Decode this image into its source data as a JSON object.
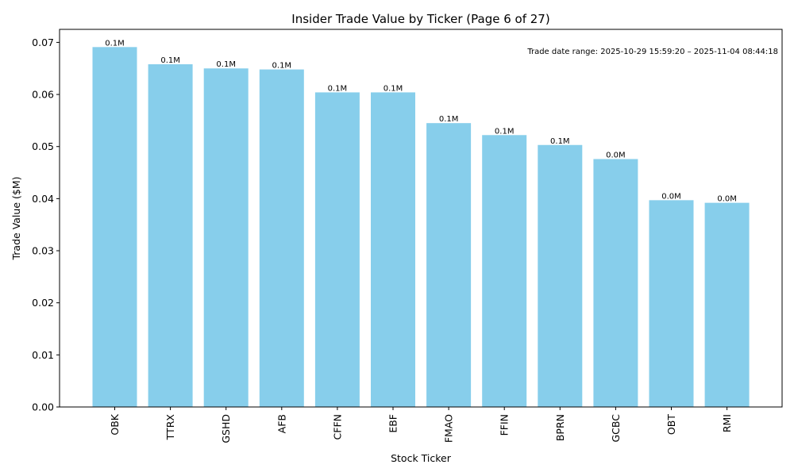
{
  "chart_data": {
    "type": "bar",
    "title": "Insider Trade Value by Ticker (Page 6 of 27)",
    "xlabel": "Stock Ticker",
    "ylabel": "Trade Value ($M)",
    "ylim": [
      0,
      0.0725
    ],
    "yticks": [
      "0.00",
      "0.01",
      "0.02",
      "0.03",
      "0.04",
      "0.05",
      "0.06",
      "0.07"
    ],
    "categories": [
      "OBK",
      "TTRX",
      "GSHD",
      "AFB",
      "CFFN",
      "EBF",
      "FMAO",
      "FFIN",
      "BPRN",
      "GCBC",
      "OBT",
      "RMI"
    ],
    "values": [
      0.0691,
      0.0658,
      0.065,
      0.0648,
      0.0604,
      0.0604,
      0.0545,
      0.0522,
      0.0503,
      0.0476,
      0.0397,
      0.0392
    ],
    "data_labels": [
      "0.1M",
      "0.1M",
      "0.1M",
      "0.1M",
      "0.1M",
      "0.1M",
      "0.1M",
      "0.1M",
      "0.1M",
      "0.0M",
      "0.0M",
      "0.0M"
    ],
    "annotation": "Trade date range: 2025-10-29 15:59:20 – 2025-11-04 08:44:18",
    "bar_color": "#87ceeb",
    "grid": false
  }
}
